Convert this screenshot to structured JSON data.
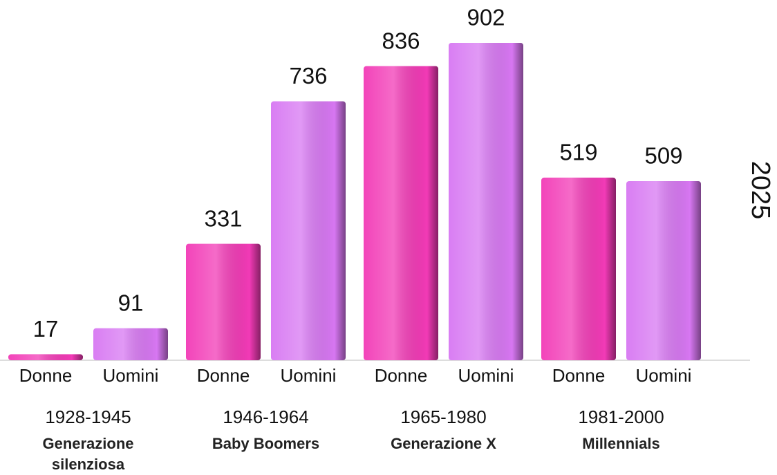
{
  "chart_data": {
    "type": "bar",
    "categories": [
      "1928-1945",
      "1946-1964",
      "1965-1980",
      "1981-2000"
    ],
    "category_names": [
      "Generazione silenziosa",
      "Baby Boomers",
      "Generazione X",
      "Millennials"
    ],
    "series": [
      {
        "name": "Donne",
        "color": "#f23ab6",
        "values": [
          17,
          331,
          836,
          519
        ]
      },
      {
        "name": "Uomini",
        "color": "#d777f2",
        "values": [
          91,
          736,
          902,
          509
        ]
      }
    ],
    "side_label": "2025"
  }
}
